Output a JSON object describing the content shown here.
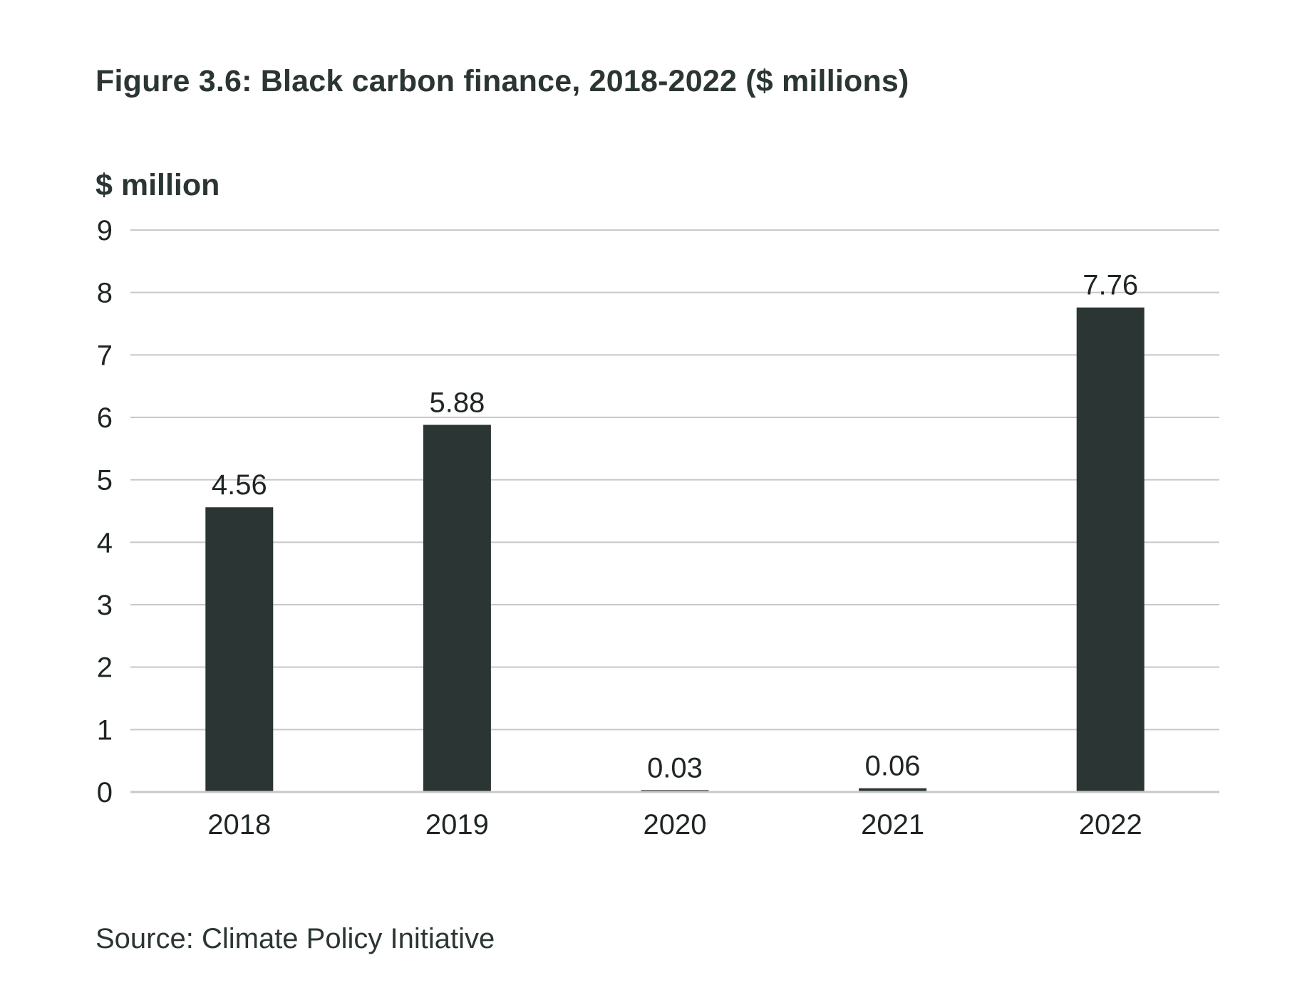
{
  "figure": {
    "title": "Figure 3.6: Black carbon finance, 2018-2022 ($ millions)",
    "y_unit": "$ million",
    "source": "Source: Climate Policy Initiative"
  },
  "colors": {
    "bar": "#2b3534",
    "grid": "#c8c8c8",
    "axis": "#c8c8c8",
    "text": "#2b3534"
  },
  "chart_data": {
    "type": "bar",
    "title": "Figure 3.6: Black carbon finance, 2018-2022 ($ millions)",
    "ylabel": "$ million",
    "xlabel": "",
    "categories": [
      "2018",
      "2019",
      "2020",
      "2021",
      "2022"
    ],
    "values": [
      4.56,
      5.88,
      0.03,
      0.06,
      7.76
    ],
    "data_labels": [
      "4.56",
      "5.88",
      "0.03",
      "0.06",
      "7.76"
    ],
    "ylim": [
      0,
      9
    ],
    "yticks": [
      0,
      1,
      2,
      3,
      4,
      5,
      6,
      7,
      8,
      9
    ],
    "grid": true,
    "legend": "none"
  }
}
